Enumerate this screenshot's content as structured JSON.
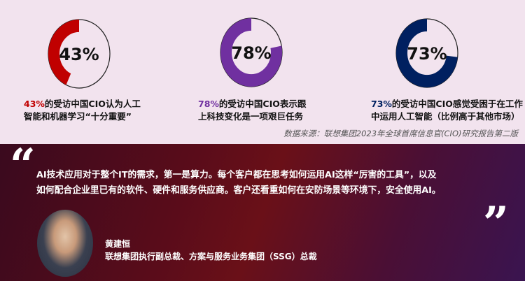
{
  "stats": [
    {
      "value": 43,
      "label": "43%",
      "color": "#c00000",
      "caption_pct": "43%",
      "caption_rest1": "的受访中国CIO认为人工",
      "caption_line2": "智能和机器学习“十分重要”"
    },
    {
      "value": 78,
      "label": "78%",
      "color": "#7030a0",
      "caption_pct": "78%",
      "caption_rest1": "的受访中国CIO表示跟",
      "caption_line2": "上科技变化是一项艰巨任务"
    },
    {
      "value": 73,
      "label": "73%",
      "color": "#002060",
      "caption_pct": "73%",
      "caption_rest1": "的受访中国CIO感觉受困于在工作",
      "caption_line2": "中运用人工智能（比例高于其他市场）"
    }
  ],
  "source": "数据来源：联想集团2023年全球首席信息官(CIO)研究报告第二版",
  "quote": {
    "open": "“",
    "close": "”",
    "line1": "AI技术应用对于整个IT的需求，第一是算力。每个客户都在思考如何运用AI这样“厉害的工具”，以及",
    "line2": "如何配合企业里已有的软件、硬件和服务供应商。客户还看重如何在安防场景等环境下，安全使用AI。"
  },
  "speaker": {
    "name": "黄建恒",
    "title": "联想集团执行副总裁、方案与服务业务集团（SSG）总裁"
  }
}
